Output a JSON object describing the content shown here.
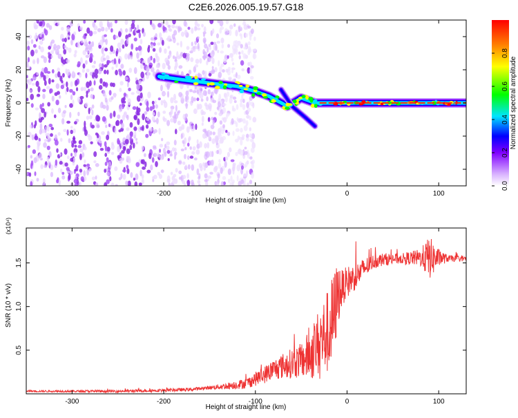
{
  "page": {
    "title": "C2E6.2026.005.19.57.G18"
  },
  "chart_data": [
    {
      "type": "heatmap",
      "xlabel": "Height of straight line (km)",
      "ylabel": "Frequency (Hz)",
      "xlim": [
        -350,
        130
      ],
      "ylim": [
        -50,
        50
      ],
      "x_ticks": [
        -300,
        -200,
        -100,
        0,
        100
      ],
      "y_ticks": [
        -40,
        -20,
        0,
        20,
        40
      ],
      "colorbar": {
        "label": "Normalized spectral amplitude",
        "range": [
          0,
          1
        ],
        "ticks": [
          0.0,
          0.2,
          0.4,
          0.6,
          0.8
        ],
        "tick_labels": [
          "0.0",
          "0.2",
          "0.4",
          "0.6",
          "0.8"
        ],
        "colormap": [
          "#ffffff",
          "#d9b3ff",
          "#8000ff",
          "#0000ff",
          "#00e5ff",
          "#00ff00",
          "#ffff00",
          "#ff8000",
          "#ff0000"
        ]
      },
      "features": {
        "noise_region_x": [
          -350,
          -140
        ],
        "main_track": [
          {
            "x": -205,
            "y": 16
          },
          {
            "x": -180,
            "y": 14
          },
          {
            "x": -150,
            "y": 12
          },
          {
            "x": -120,
            "y": 10
          },
          {
            "x": -100,
            "y": 7
          },
          {
            "x": -85,
            "y": 4
          },
          {
            "x": -65,
            "y": -2
          },
          {
            "x": -50,
            "y": 3
          },
          {
            "x": -35,
            "y": 0
          },
          {
            "x": 0,
            "y": 0
          },
          {
            "x": 50,
            "y": 0
          },
          {
            "x": 100,
            "y": 0
          },
          {
            "x": 130,
            "y": 0
          }
        ],
        "secondary_track": [
          {
            "x": -72,
            "y": 8
          },
          {
            "x": -60,
            "y": -2
          },
          {
            "x": -45,
            "y": -9
          },
          {
            "x": -35,
            "y": -14
          }
        ]
      },
      "grid": false
    },
    {
      "type": "line",
      "xlabel": "Height of straight line (km)",
      "ylabel": "SNR (10 * v/v)",
      "y_multiplier": "(x10⁴)",
      "xlim": [
        -350,
        130
      ],
      "ylim": [
        0,
        1.9
      ],
      "x_ticks": [
        -300,
        -200,
        -100,
        0,
        100
      ],
      "y_ticks": [
        0.5,
        1.0,
        1.5
      ],
      "y_tick_labels": [
        "0.5",
        "1.0",
        "1.5"
      ],
      "series": [
        {
          "color": "#ee3333",
          "points": [
            [
              -350,
              0.03
            ],
            [
              -300,
              0.03
            ],
            [
              -250,
              0.03
            ],
            [
              -200,
              0.04
            ],
            [
              -170,
              0.05
            ],
            [
              -150,
              0.07
            ],
            [
              -130,
              0.09
            ],
            [
              -110,
              0.12
            ],
            [
              -100,
              0.17
            ],
            [
              -90,
              0.22
            ],
            [
              -80,
              0.28
            ],
            [
              -70,
              0.32
            ],
            [
              -60,
              0.35
            ],
            [
              -50,
              0.38
            ],
            [
              -40,
              0.45
            ],
            [
              -30,
              0.6
            ],
            [
              -20,
              0.72
            ],
            [
              -15,
              0.85
            ],
            [
              -10,
              1.15
            ],
            [
              0,
              1.28
            ],
            [
              10,
              1.35
            ],
            [
              20,
              1.45
            ],
            [
              30,
              1.52
            ],
            [
              40,
              1.54
            ],
            [
              60,
              1.55
            ],
            [
              80,
              1.56
            ],
            [
              90,
              1.56
            ],
            [
              95,
              1.55
            ],
            [
              100,
              1.56
            ],
            [
              110,
              1.55
            ],
            [
              130,
              1.55
            ]
          ],
          "noise": [
            [
              -350,
              0.01
            ],
            [
              -150,
              0.02
            ],
            [
              -110,
              0.06
            ],
            [
              -80,
              0.12
            ],
            [
              -50,
              0.2
            ],
            [
              -30,
              0.4
            ],
            [
              -15,
              0.55
            ],
            [
              -5,
              0.2
            ],
            [
              10,
              0.15
            ],
            [
              30,
              0.08
            ],
            [
              60,
              0.06
            ],
            [
              80,
              0.1
            ],
            [
              90,
              0.25
            ],
            [
              100,
              0.1
            ],
            [
              110,
              0.04
            ],
            [
              130,
              0.03
            ]
          ]
        }
      ],
      "grid": false
    }
  ]
}
